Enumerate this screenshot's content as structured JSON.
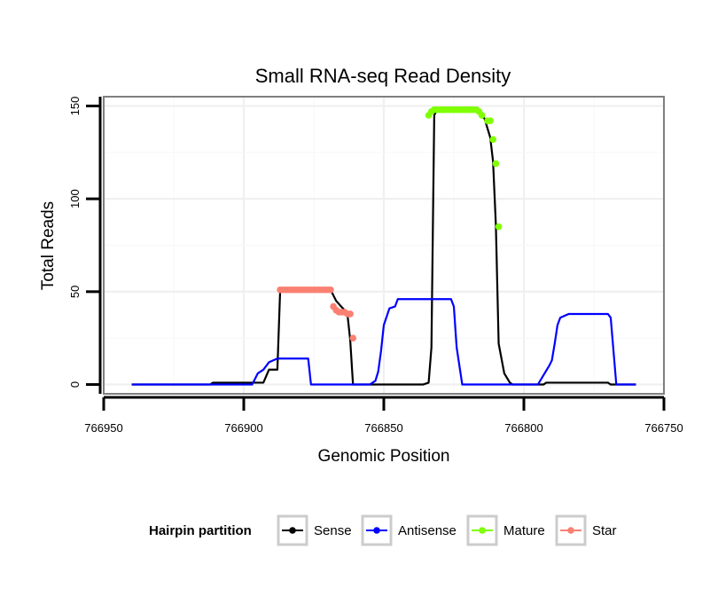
{
  "chart_data": {
    "type": "line",
    "title": "Small RNA-seq Read Density",
    "xlabel": "Genomic Position",
    "ylabel": "Total Reads",
    "xlim": [
      766950,
      766750
    ],
    "ylim": [
      -5,
      155
    ],
    "x_ticks": [
      766950,
      766900,
      766850,
      766800,
      766750
    ],
    "x_tick_labels": [
      "766950",
      "766900",
      "766850",
      "766800",
      "766750"
    ],
    "y_ticks": [
      0,
      50,
      100,
      150
    ],
    "y_tick_labels": [
      "0",
      "50",
      "100",
      "150"
    ],
    "x_reversed": true,
    "grid": true,
    "legend": {
      "title": "Hairpin partition",
      "position": "bottom",
      "items": [
        {
          "name": "Sense",
          "color": "#000000"
        },
        {
          "name": "Antisense",
          "color": "#0000ff"
        },
        {
          "name": "Mature",
          "color": "#7fff00"
        },
        {
          "name": "Star",
          "color": "#fa8072"
        }
      ]
    },
    "series": [
      {
        "name": "Sense",
        "color": "#000000",
        "points": [
          [
            766940,
            0
          ],
          [
            766912,
            0
          ],
          [
            766911,
            1
          ],
          [
            766895,
            1
          ],
          [
            766893,
            1
          ],
          [
            766891,
            8
          ],
          [
            766888,
            8
          ],
          [
            766887,
            51
          ],
          [
            766869,
            51
          ],
          [
            766867,
            45
          ],
          [
            766864,
            40
          ],
          [
            766863,
            38
          ],
          [
            766862,
            24
          ],
          [
            766861,
            0
          ],
          [
            766836,
            0
          ],
          [
            766834,
            1
          ],
          [
            766833,
            20
          ],
          [
            766832,
            145
          ],
          [
            766831,
            148
          ],
          [
            766816,
            148
          ],
          [
            766814,
            143
          ],
          [
            766812,
            133
          ],
          [
            766811,
            120
          ],
          [
            766810,
            86
          ],
          [
            766809,
            22
          ],
          [
            766807,
            6
          ],
          [
            766805,
            1
          ],
          [
            766804,
            0
          ],
          [
            766793,
            0
          ],
          [
            766792,
            1
          ],
          [
            766770,
            1
          ],
          [
            766769,
            0
          ],
          [
            766760,
            0
          ]
        ]
      },
      {
        "name": "Antisense",
        "color": "#0000ff",
        "points": [
          [
            766940,
            0
          ],
          [
            766897,
            0
          ],
          [
            766895,
            6
          ],
          [
            766893,
            8
          ],
          [
            766891,
            12
          ],
          [
            766888,
            14
          ],
          [
            766877,
            14
          ],
          [
            766876,
            0
          ],
          [
            766855,
            0
          ],
          [
            766853,
            2
          ],
          [
            766852,
            7
          ],
          [
            766851,
            18
          ],
          [
            766850,
            32
          ],
          [
            766848,
            41
          ],
          [
            766846,
            42
          ],
          [
            766845,
            46
          ],
          [
            766826,
            46
          ],
          [
            766825,
            42
          ],
          [
            766824,
            20
          ],
          [
            766822,
            0
          ],
          [
            766795,
            0
          ],
          [
            766793,
            5
          ],
          [
            766791,
            10
          ],
          [
            766790,
            13
          ],
          [
            766789,
            22
          ],
          [
            766788,
            32
          ],
          [
            766787,
            36
          ],
          [
            766784,
            38
          ],
          [
            766770,
            38
          ],
          [
            766769,
            36
          ],
          [
            766767,
            0
          ],
          [
            766760,
            0
          ]
        ]
      },
      {
        "name": "Mature",
        "color": "#7fff00",
        "points": [
          [
            766834,
            145
          ],
          [
            766833,
            147
          ],
          [
            766832,
            148
          ],
          [
            766831,
            148
          ],
          [
            766830,
            148
          ],
          [
            766829,
            148
          ],
          [
            766828,
            148
          ],
          [
            766827,
            148
          ],
          [
            766826,
            148
          ],
          [
            766825,
            148
          ],
          [
            766824,
            148
          ],
          [
            766823,
            148
          ],
          [
            766822,
            148
          ],
          [
            766821,
            148
          ],
          [
            766820,
            148
          ],
          [
            766819,
            148
          ],
          [
            766818,
            148
          ],
          [
            766817,
            148
          ],
          [
            766816,
            147
          ],
          [
            766815,
            145
          ],
          [
            766813,
            142
          ],
          [
            766812,
            142
          ],
          [
            766811,
            132
          ],
          [
            766810,
            119
          ],
          [
            766809,
            85
          ]
        ]
      },
      {
        "name": "Star",
        "color": "#fa8072",
        "points": [
          [
            766887,
            51
          ],
          [
            766886,
            51
          ],
          [
            766885,
            51
          ],
          [
            766884,
            51
          ],
          [
            766883,
            51
          ],
          [
            766882,
            51
          ],
          [
            766881,
            51
          ],
          [
            766880,
            51
          ],
          [
            766879,
            51
          ],
          [
            766878,
            51
          ],
          [
            766877,
            51
          ],
          [
            766876,
            51
          ],
          [
            766875,
            51
          ],
          [
            766874,
            51
          ],
          [
            766873,
            51
          ],
          [
            766872,
            51
          ],
          [
            766871,
            51
          ],
          [
            766870,
            51
          ],
          [
            766869,
            51
          ],
          [
            766868,
            42
          ],
          [
            766867,
            40
          ],
          [
            766866,
            39
          ],
          [
            766865,
            39
          ],
          [
            766864,
            39
          ],
          [
            766863,
            38
          ],
          [
            766862,
            38
          ],
          [
            766861,
            25
          ]
        ]
      }
    ]
  }
}
